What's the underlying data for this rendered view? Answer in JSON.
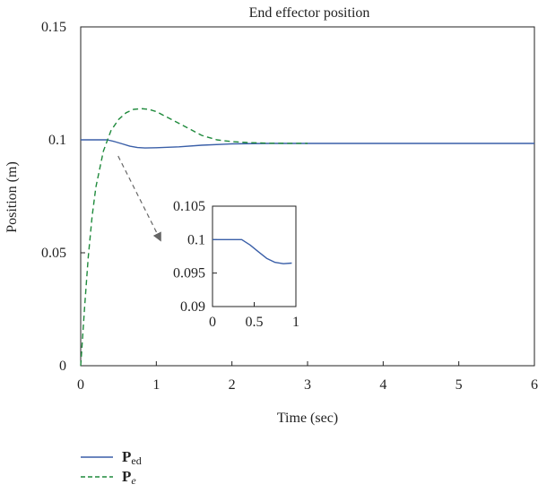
{
  "chart_data": [
    {
      "type": "line",
      "title": "End effector position",
      "xlabel": "Time (sec)",
      "ylabel": "Position (m)",
      "xlim": [
        0,
        6
      ],
      "ylim": [
        0,
        0.15
      ],
      "xticks": [
        "0",
        "1",
        "2",
        "3",
        "4",
        "5",
        "6"
      ],
      "yticks": [
        "0",
        "0.05",
        "0.1",
        "0.15"
      ],
      "grid": false,
      "legend": "bottom-left below plot",
      "series": [
        {
          "name": "P_ed",
          "color": "#3a5fa8",
          "style": "solid",
          "x": [
            0,
            0.35,
            0.45,
            0.55,
            0.65,
            0.75,
            0.85,
            1.0,
            1.3,
            1.6,
            2.0,
            2.5,
            3.0,
            6.0
          ],
          "y": [
            0.1,
            0.1,
            0.0992,
            0.0982,
            0.0972,
            0.0966,
            0.0964,
            0.0965,
            0.0969,
            0.0976,
            0.0982,
            0.0984,
            0.0984,
            0.0984
          ]
        },
        {
          "name": "P_e",
          "color": "#1f8a3c",
          "style": "dashed",
          "x": [
            0,
            0.05,
            0.1,
            0.15,
            0.2,
            0.3,
            0.4,
            0.5,
            0.6,
            0.7,
            0.8,
            0.9,
            1.0,
            1.2,
            1.4,
            1.6,
            1.8,
            2.0,
            2.2,
            2.5,
            3.0
          ],
          "y": [
            0,
            0.025,
            0.048,
            0.066,
            0.079,
            0.095,
            0.104,
            0.109,
            0.112,
            0.1135,
            0.1138,
            0.1135,
            0.1125,
            0.109,
            0.1055,
            0.102,
            0.1,
            0.0992,
            0.0988,
            0.0985,
            0.0984
          ]
        }
      ],
      "annotations": [
        {
          "type": "arrow",
          "from_data": [
            0.4,
            0.096
          ],
          "to_note": "points toward zoomed inset"
        }
      ]
    },
    {
      "type": "line",
      "title": "",
      "xlabel": "",
      "ylabel": "",
      "xlim": [
        0,
        1
      ],
      "ylim": [
        0.09,
        0.105
      ],
      "xticks": [
        "0",
        "0.5",
        "1"
      ],
      "yticks": [
        "0.09",
        "0.095",
        "0.1",
        "0.105"
      ],
      "series": [
        {
          "name": "P_ed (zoom)",
          "color": "#3a5fa8",
          "style": "solid",
          "x": [
            0,
            0.35,
            0.45,
            0.55,
            0.65,
            0.75,
            0.85,
            0.95
          ],
          "y": [
            0.1,
            0.1,
            0.0992,
            0.0982,
            0.0972,
            0.0966,
            0.0964,
            0.0965
          ]
        }
      ]
    }
  ],
  "legend": {
    "items": [
      {
        "symbol": "P",
        "sub": "ed",
        "sub_italic": false,
        "color": "#3a5fa8",
        "style": "solid"
      },
      {
        "symbol": "P",
        "sub": "e",
        "sub_italic": true,
        "color": "#1f8a3c",
        "style": "dashed"
      }
    ]
  }
}
